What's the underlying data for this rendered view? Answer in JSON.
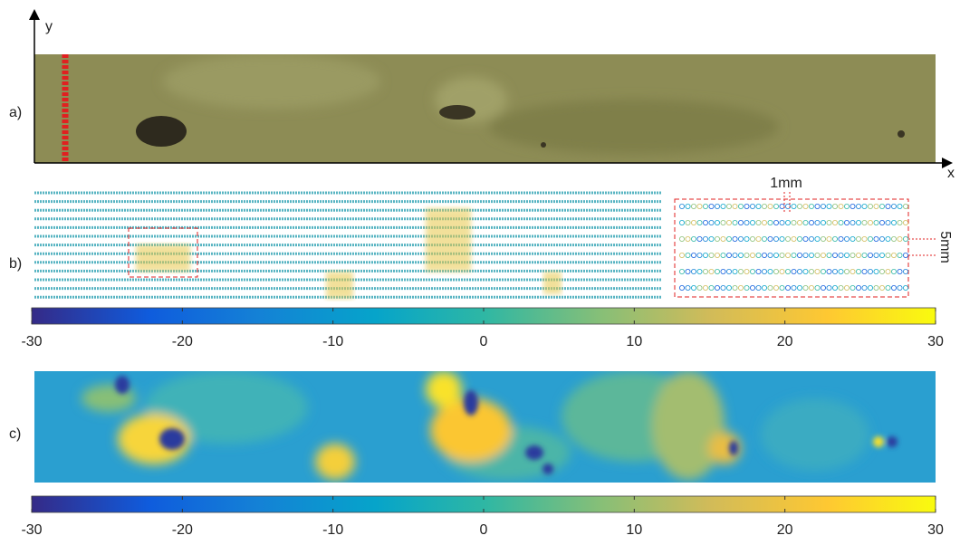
{
  "axes": {
    "y": "y",
    "x": "x"
  },
  "panels": {
    "a": "a)",
    "b": "b)",
    "c": "c)"
  },
  "inset": {
    "spacing_x": "1mm",
    "spacing_y": "5mm"
  },
  "colorbars": [
    {
      "range": [
        -30,
        30
      ],
      "ticks": [
        -30,
        -20,
        -10,
        0,
        10,
        20,
        30
      ]
    },
    {
      "range": [
        -30,
        30
      ],
      "ticks": [
        -30,
        -20,
        -10,
        0,
        10,
        20,
        30
      ]
    }
  ]
}
